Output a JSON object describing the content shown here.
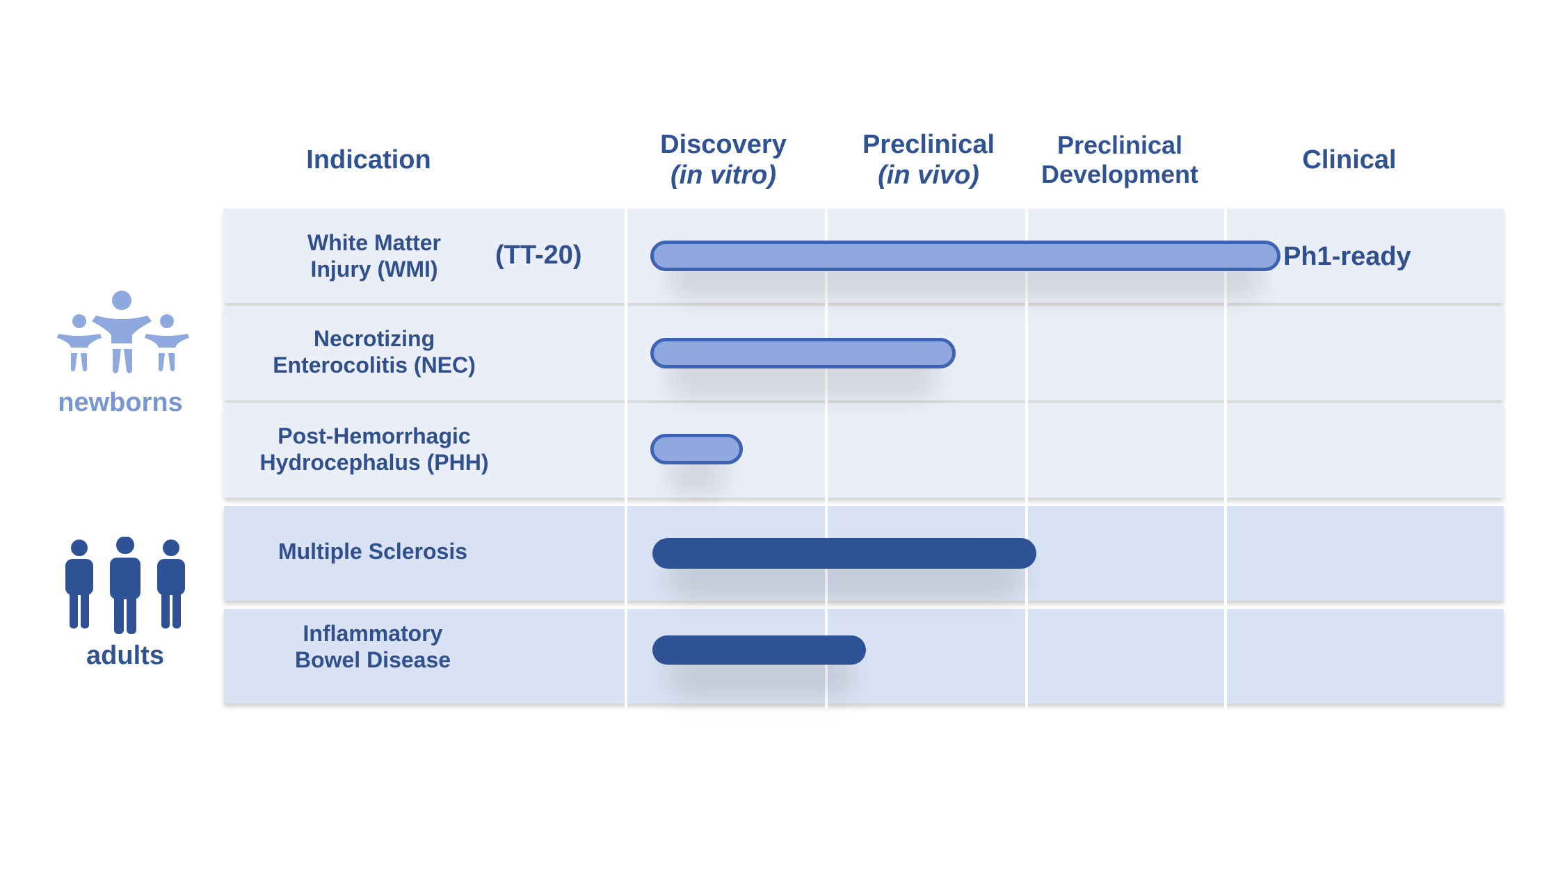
{
  "headers": {
    "indication": "Indication",
    "discovery": "Discovery",
    "discovery_sub": "(in vitro)",
    "preclinical": "Preclinical",
    "preclinical_sub": "(in vivo)",
    "preclinical_dev_1": "Preclinical",
    "preclinical_dev_2": "Development",
    "clinical": "Clinical"
  },
  "groups": {
    "newborns": "newborns",
    "adults": "adults"
  },
  "rows": [
    {
      "line1": "White Matter",
      "line2": "Injury (WMI)",
      "tag": "(TT-20)",
      "status": "Ph1-ready",
      "progress": 0.73
    },
    {
      "line1": "Necrotizing",
      "line2": "Enterocolitis (NEC)",
      "progress": 0.35
    },
    {
      "line1": "Post-Hemorrhagic",
      "line2": "Hydrocephalus (PHH)",
      "progress": 0.1
    },
    {
      "line1": "Multiple Sclerosis",
      "line2": "",
      "progress": 0.45
    },
    {
      "line1": "Inflammatory",
      "line2": "Bowel Disease",
      "progress": 0.25
    }
  ],
  "colors": {
    "newborn_bar": "#8fa9df",
    "newborn_bar_border": "#3f63b4",
    "adult_bar": "#2f5296",
    "newborn_row": "#e9eef7",
    "adult_row": "#d9e2f2",
    "text": "#2f4f8f"
  }
}
